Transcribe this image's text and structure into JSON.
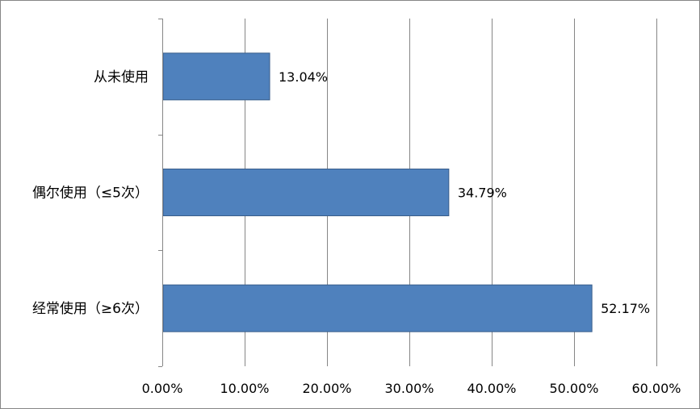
{
  "chart_data": {
    "type": "bar",
    "orientation": "horizontal",
    "categories": [
      "从未使用",
      "偶尔使用（≤5次）",
      "经常使用（≥6次）"
    ],
    "values": [
      13.04,
      34.79,
      52.17
    ],
    "data_labels": [
      "13.04%",
      "34.79%",
      "52.17%"
    ],
    "xlim": [
      0,
      60
    ],
    "x_ticks": [
      0,
      10,
      20,
      30,
      40,
      50,
      60
    ],
    "x_tick_labels": [
      "0.00%",
      "10.00%",
      "20.00%",
      "30.00%",
      "40.00%",
      "50.00%",
      "60.00%"
    ],
    "title": "",
    "xlabel": "",
    "ylabel": "",
    "grid": "vertical",
    "legend": "none",
    "bar_color": "#4F81BD",
    "bar_border_color": "#385D8A",
    "grid_color": "#868686"
  }
}
